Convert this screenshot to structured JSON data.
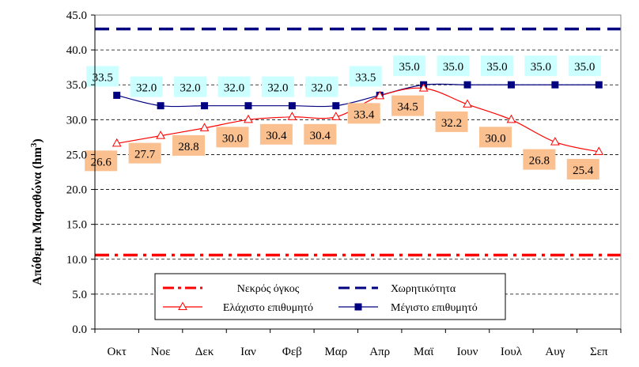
{
  "chart_data": {
    "type": "line",
    "title": "",
    "xlabel": "",
    "ylabel": "Απόθεμα Μαραθώνα (hm",
    "ylabel_sup": "3",
    "ylabel_close": ")",
    "ylim": [
      0,
      45
    ],
    "ytick_step": 5,
    "ytick_labels": [
      "0.0",
      "5.0",
      "10.0",
      "15.0",
      "20.0",
      "25.0",
      "30.0",
      "35.0",
      "40.0",
      "45.0"
    ],
    "grid": true,
    "categories": [
      "Οκτ",
      "Νοε",
      "Δεκ",
      "Ιαν",
      "Φεβ",
      "Μαρ",
      "Απρ",
      "Μαϊ",
      "Ιουν",
      "Ιουλ",
      "Αυγ",
      "Σεπ"
    ],
    "series": [
      {
        "name": "Νεκρός όγκος",
        "style": "dash-dot",
        "color": "#ff0000",
        "values": [
          10.6,
          10.6,
          10.6,
          10.6,
          10.6,
          10.6,
          10.6,
          10.6,
          10.6,
          10.6,
          10.6,
          10.6
        ]
      },
      {
        "name": "Χωρητικότητα",
        "style": "dashed",
        "color": "#000080",
        "values": [
          43.0,
          43.0,
          43.0,
          43.0,
          43.0,
          43.0,
          43.0,
          43.0,
          43.0,
          43.0,
          43.0,
          43.0
        ]
      },
      {
        "name": "Ελάχιστο επιθυμητό",
        "style": "line-triangle",
        "color": "#ff0000",
        "values": [
          26.6,
          27.7,
          28.8,
          30.0,
          30.4,
          30.4,
          33.4,
          34.5,
          32.2,
          30.0,
          26.8,
          25.4
        ],
        "labels": [
          "26.6",
          "27.7",
          "28.8",
          "30.0",
          "30.4",
          "30.4",
          "33.4",
          "34.5",
          "32.2",
          "30.0",
          "26.8",
          "25.4"
        ],
        "label_bg": "#fac090"
      },
      {
        "name": "Μέγιστο επιθυμητό",
        "style": "line-square",
        "color": "#000080",
        "values": [
          33.5,
          32.0,
          32.0,
          32.0,
          32.0,
          32.0,
          33.5,
          35.0,
          35.0,
          35.0,
          35.0,
          35.0
        ],
        "labels": [
          "33.5",
          "32.0",
          "32.0",
          "32.0",
          "32.0",
          "32.0",
          "33.5",
          "35.0",
          "35.0",
          "35.0",
          "35.0",
          "35.0"
        ],
        "label_bg": "#ccffff"
      }
    ],
    "legend": {
      "placement": "bottom-center",
      "entries": [
        "Νεκρός όγκος",
        "Χωρητικότητα",
        "Ελάχιστο επιθυμητό",
        "Μέγιστο επιθυμητό"
      ]
    }
  }
}
